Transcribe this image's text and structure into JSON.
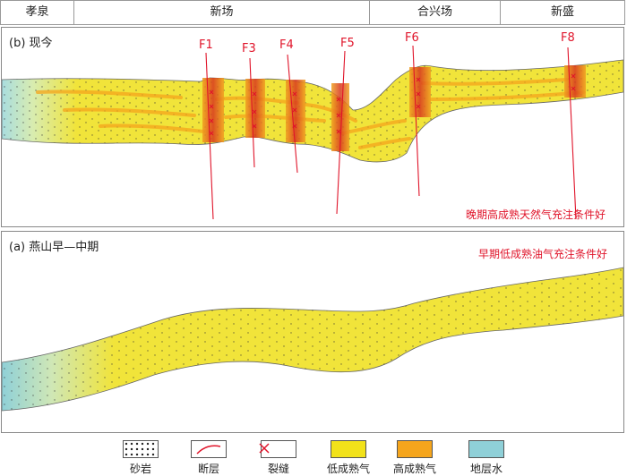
{
  "header": {
    "cells": [
      "孝泉",
      "新场",
      "合兴场",
      "新盛"
    ]
  },
  "panel_b": {
    "label": "(b) 现今",
    "note": "晚期高成熟天然气充注条件好",
    "faults": [
      "F1",
      "F3",
      "F4",
      "F5",
      "F6",
      "F8"
    ]
  },
  "panel_a": {
    "label": "(a) 燕山早—中期",
    "note": "早期低成熟油气充注条件好"
  },
  "legend": {
    "items": [
      {
        "label": "砂岩",
        "icon": "sandstone-pattern"
      },
      {
        "label": "断层",
        "icon": "fault-line"
      },
      {
        "label": "裂缝",
        "icon": "fracture-cross"
      },
      {
        "label": "低成熟气",
        "color": "#f2e21a"
      },
      {
        "label": "高成熟气",
        "color": "#f5a51c"
      },
      {
        "label": "地层水",
        "color": "#8fd0d8"
      }
    ]
  },
  "colors": {
    "fault": "#e0142a",
    "low_mature_gas": "#f2e21a",
    "high_mature_gas": "#f5a51c",
    "formation_water": "#8fd0d8"
  }
}
